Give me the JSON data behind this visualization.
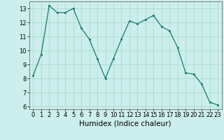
{
  "x": [
    0,
    1,
    2,
    3,
    4,
    5,
    6,
    7,
    8,
    9,
    10,
    11,
    12,
    13,
    14,
    15,
    16,
    17,
    18,
    19,
    20,
    21,
    22,
    23
  ],
  "y": [
    8.2,
    9.7,
    13.2,
    12.7,
    12.7,
    13.0,
    11.6,
    10.8,
    9.4,
    8.0,
    9.4,
    10.8,
    12.1,
    11.9,
    12.2,
    12.5,
    11.7,
    11.4,
    10.2,
    8.4,
    8.3,
    7.6,
    6.3,
    6.1
  ],
  "xlabel": "Humidex (Indice chaleur)",
  "bg_color": "#cceeed",
  "grid_color": "#aaddcc",
  "line_color": "#1a7a6a",
  "marker_color": "#1a7a6a",
  "xlim": [
    -0.5,
    23.5
  ],
  "ylim": [
    5.8,
    13.5
  ],
  "yticks": [
    6,
    7,
    8,
    9,
    10,
    11,
    12,
    13
  ],
  "xticks": [
    0,
    1,
    2,
    3,
    4,
    5,
    6,
    7,
    8,
    9,
    10,
    11,
    12,
    13,
    14,
    15,
    16,
    17,
    18,
    19,
    20,
    21,
    22,
    23
  ],
  "tick_fontsize": 6.0,
  "xlabel_fontsize": 7.5
}
